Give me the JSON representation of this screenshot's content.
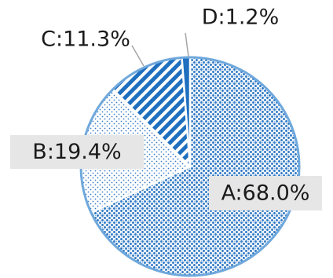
{
  "chart_data": {
    "type": "pie",
    "title": "",
    "slices": [
      {
        "category": "A",
        "value": 68.0,
        "label": "A:68.0%",
        "pattern": "checker-dots",
        "color": "#3a7cc6"
      },
      {
        "category": "B",
        "value": 19.4,
        "label": "B:19.4%",
        "pattern": "sparse-dots",
        "color": "#3a7cc6"
      },
      {
        "category": "C",
        "value": 11.3,
        "label": "C:11.3%",
        "pattern": "diagonal-stripes",
        "color": "#1f6fbf"
      },
      {
        "category": "D",
        "value": 1.2,
        "label": "D:1.2%",
        "pattern": "solid",
        "color": "#1f6fbf"
      }
    ],
    "start_angle": "12 o'clock",
    "direction": "clockwise",
    "legend": "none",
    "outline_color": "#6fa8dc"
  }
}
